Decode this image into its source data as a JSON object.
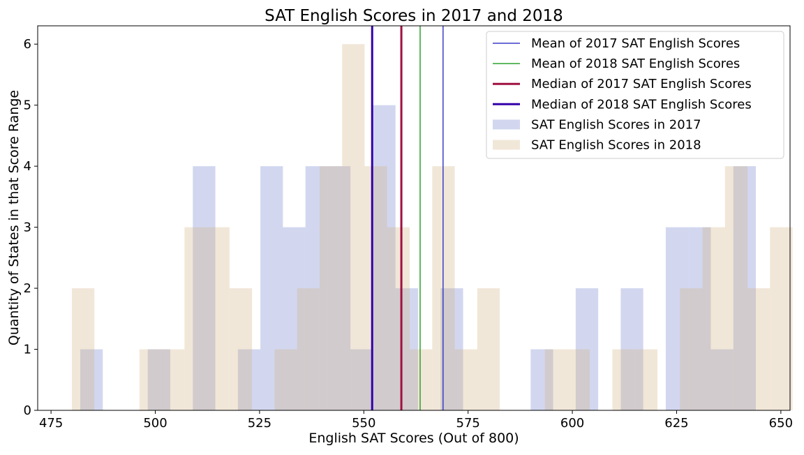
{
  "chart_data": {
    "type": "histogram",
    "title": "SAT English Scores in 2017 and 2018",
    "xlabel": "English SAT Scores (Out of 800)",
    "ylabel": "Quantity of States in that Score Range",
    "xlim": [
      471.8,
      652.2
    ],
    "ylim": [
      0,
      6.3
    ],
    "xticks": [
      475,
      500,
      525,
      550,
      575,
      600,
      625,
      650
    ],
    "yticks": [
      0,
      1,
      2,
      3,
      4,
      5,
      6
    ],
    "legend_position": "top-right",
    "grid": false,
    "series": [
      {
        "name": "SAT English Scores in 2017",
        "color": "#4a5fbf",
        "opacity": 0.25,
        "bin_start": 482,
        "bin_width": 5.4,
        "counts": [
          1,
          0,
          0,
          1,
          0,
          4,
          0,
          1,
          4,
          3,
          4,
          4,
          1,
          5,
          2,
          0,
          2,
          0,
          0,
          0,
          1,
          0,
          2,
          0,
          2,
          0,
          3,
          3,
          1,
          4
        ]
      },
      {
        "name": "SAT English Scores in 2018",
        "color": "#cfae7f",
        "opacity": 0.3,
        "bin_start": 480,
        "bin_width": 5.4,
        "counts": [
          2,
          0,
          0,
          1,
          1,
          3,
          3,
          2,
          0,
          1,
          2,
          4,
          6,
          4,
          3,
          1,
          4,
          1,
          2,
          0,
          0,
          1,
          1,
          0,
          1,
          1,
          0,
          2,
          3,
          4,
          2,
          3
        ]
      }
    ],
    "reference_lines": [
      {
        "name": "Mean of 2017 SAT English Scores",
        "x": 569.0,
        "color": "#3b3bc8",
        "width": 1.5
      },
      {
        "name": "Mean of 2018 SAT English Scores",
        "x": 563.5,
        "color": "#2ca02c",
        "width": 1.5
      },
      {
        "name": "Median of 2017 SAT English Scores",
        "x": 559.0,
        "color": "#a01040",
        "width": 3
      },
      {
        "name": "Median of 2018 SAT English Scores",
        "x": 552.0,
        "color": "#3300aa",
        "width": 3
      }
    ]
  }
}
